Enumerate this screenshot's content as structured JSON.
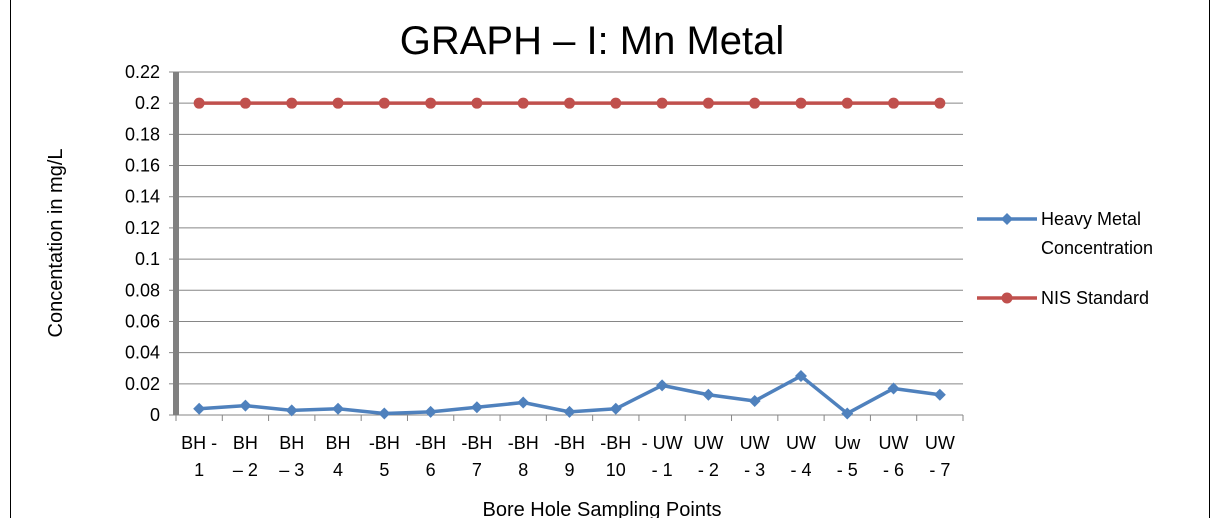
{
  "chart_data": {
    "type": "line",
    "title": "GRAPH – I: Mn Metal",
    "xlabel": "Bore Hole Sampling Points",
    "ylabel": "Concentation in  mg/L",
    "ylim": [
      0,
      0.22
    ],
    "yticks": [
      "0",
      "0.02",
      "0.04",
      "0.06",
      "0.08",
      "0.1",
      "0.12",
      "0.14",
      "0.16",
      "0.18",
      "0.2",
      "0.22"
    ],
    "grid": true,
    "legend_position": "right",
    "categories": [
      [
        "BH -",
        "1"
      ],
      [
        "BH",
        "– 2"
      ],
      [
        "BH",
        "– 3"
      ],
      [
        "BH",
        "4"
      ],
      [
        "-BH",
        "5"
      ],
      [
        "-BH",
        "6"
      ],
      [
        "-BH",
        "7"
      ],
      [
        "-BH",
        "8"
      ],
      [
        "-BH",
        "9"
      ],
      [
        "-BH",
        "10"
      ],
      [
        "- UW",
        "- 1"
      ],
      [
        "UW",
        "- 2"
      ],
      [
        "UW",
        "- 3"
      ],
      [
        "UW",
        "- 4"
      ],
      [
        "Uw",
        "- 5"
      ],
      [
        "UW",
        "- 6"
      ],
      [
        "UW",
        "- 7"
      ]
    ],
    "series": [
      {
        "name": "Heavy Metal Concentration",
        "legend_lines": [
          "Heavy Metal",
          "Concentration"
        ],
        "color": "#4f81bd",
        "marker": "diamond",
        "values": [
          0.004,
          0.006,
          0.003,
          0.004,
          0.001,
          0.002,
          0.005,
          0.008,
          0.002,
          0.004,
          0.019,
          0.013,
          0.009,
          0.025,
          0.001,
          0.017,
          0.013
        ]
      },
      {
        "name": "NIS Standard",
        "legend_lines": [
          "NIS Standard"
        ],
        "color": "#c0504d",
        "marker": "circle",
        "values": [
          0.2,
          0.2,
          0.2,
          0.2,
          0.2,
          0.2,
          0.2,
          0.2,
          0.2,
          0.2,
          0.2,
          0.2,
          0.2,
          0.2,
          0.2,
          0.2,
          0.2
        ]
      }
    ]
  }
}
